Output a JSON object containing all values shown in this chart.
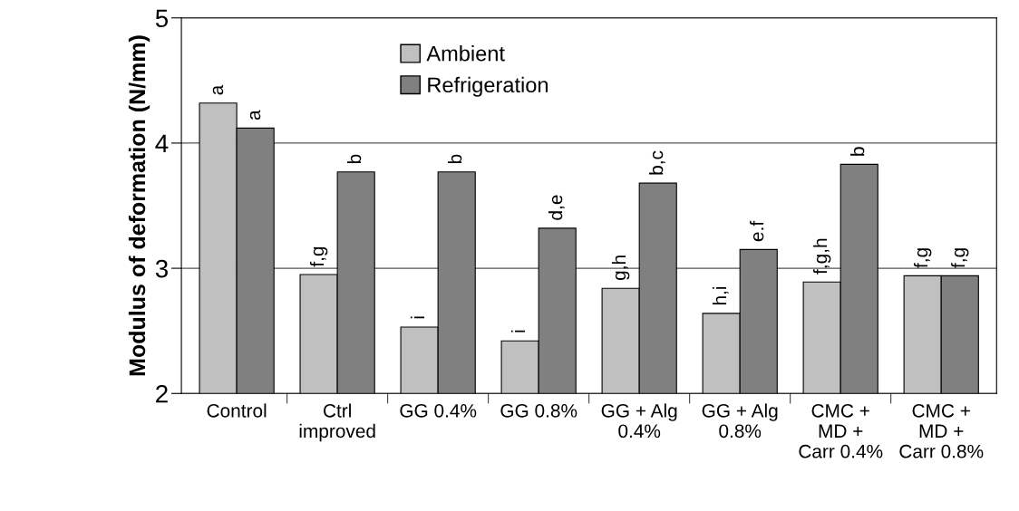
{
  "chart_data": {
    "type": "bar",
    "ylabel": "Modulus of deformation (N/mm)",
    "categories": [
      "Control",
      "Ctrl\nimproved",
      "GG 0.4%",
      "GG 0.8%",
      "GG + Alg\n0.4%",
      "GG + Alg\n0.8%",
      "CMC +\nMD +\nCarr 0.4%",
      "CMC +\nMD +\nCarr 0.8%"
    ],
    "series": [
      {
        "name": "Ambient",
        "color": "#c0c0c0",
        "values": [
          4.32,
          2.95,
          2.53,
          2.42,
          2.84,
          2.64,
          2.89,
          2.94
        ],
        "value_labels": [
          "a",
          "f,g",
          "i",
          "i",
          "g,h",
          "h,i",
          "f,g,h",
          "f,g"
        ]
      },
      {
        "name": "Refrigeration",
        "color": "#808080",
        "values": [
          4.12,
          3.77,
          3.77,
          3.32,
          3.68,
          3.15,
          3.83,
          2.94
        ],
        "value_labels": [
          "a",
          "b",
          "b",
          "d,e",
          "b,c",
          "e.f",
          "b",
          "f,g"
        ]
      }
    ],
    "ylim": [
      2,
      5
    ],
    "yticks": [
      2,
      3,
      4,
      5
    ],
    "grid": "y",
    "legend": "top"
  }
}
